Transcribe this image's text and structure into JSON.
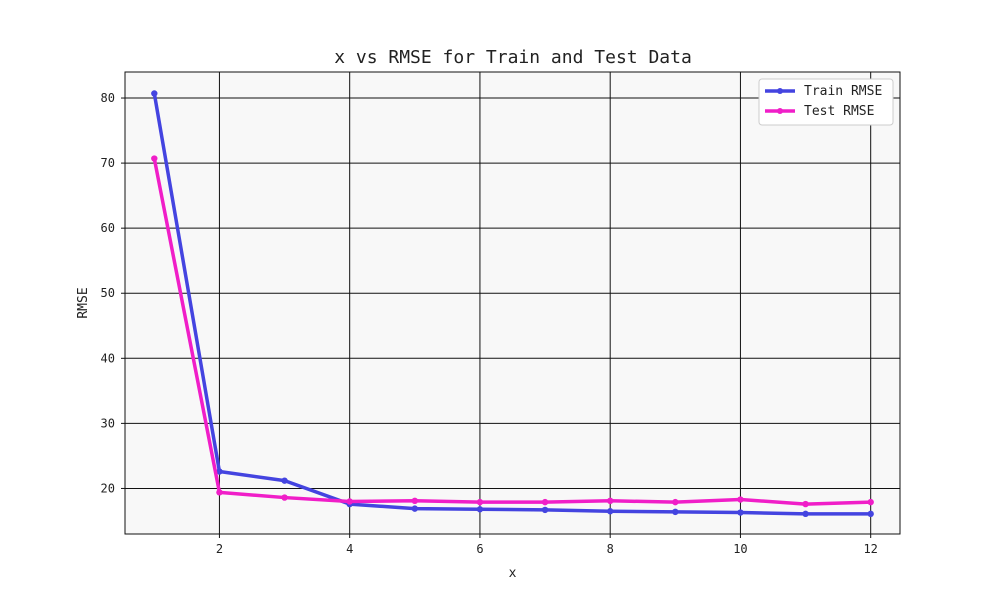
{
  "chart_data": {
    "type": "line",
    "title": "x vs RMSE for Train and Test Data",
    "xlabel": "x",
    "ylabel": "RMSE",
    "xlim": [
      0.55,
      12.45
    ],
    "ylim": [
      13.0,
      84.0
    ],
    "xticks": [
      2,
      4,
      6,
      8,
      10,
      12
    ],
    "yticks": [
      20,
      30,
      40,
      50,
      60,
      70,
      80
    ],
    "grid": true,
    "legend_position": "top-right",
    "x": [
      1,
      2,
      3,
      4,
      5,
      6,
      7,
      8,
      9,
      10,
      11,
      12
    ],
    "series": [
      {
        "name": "Train RMSE",
        "color": "#4444e0",
        "values": [
          80.7,
          22.6,
          21.2,
          17.6,
          16.9,
          16.8,
          16.7,
          16.5,
          16.4,
          16.3,
          16.1,
          16.1
        ]
      },
      {
        "name": "Test RMSE",
        "color": "#f01ec8",
        "values": [
          70.7,
          19.4,
          18.6,
          18.0,
          18.1,
          17.9,
          17.9,
          18.1,
          17.9,
          18.3,
          17.6,
          17.9
        ]
      }
    ],
    "colors": {
      "plot_background": "#f8f8f8",
      "grid": "#111111"
    }
  }
}
